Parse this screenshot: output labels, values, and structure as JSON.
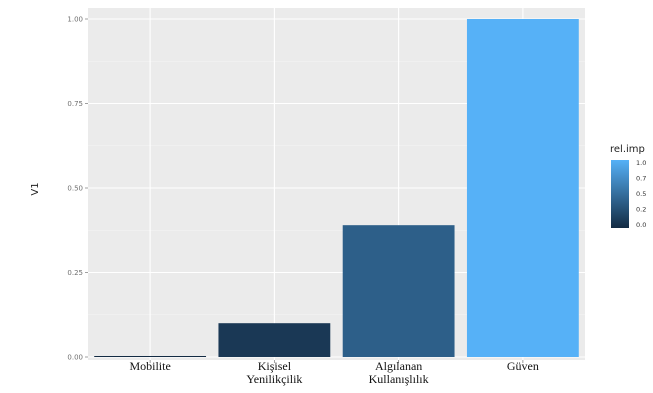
{
  "chart_data": {
    "type": "bar",
    "categories": [
      "Mobilite",
      "Kişisel Yenilikçilik",
      "Algılanan Kullanışlılık",
      "Güven"
    ],
    "category_lines": [
      [
        "Mobilite"
      ],
      [
        "Kişisel",
        "Yenilikçilik"
      ],
      [
        "Algılanan",
        "Kullanışlılık"
      ],
      [
        "Güven"
      ]
    ],
    "values": [
      0.002,
      0.1,
      0.39,
      1.0
    ],
    "ylabel": "V1",
    "xlabel": "",
    "ylim": [
      0,
      1
    ],
    "yticks": [
      0.0,
      0.25,
      0.5,
      0.75,
      1.0
    ],
    "ytick_labels": [
      "0.00",
      "0.25",
      "0.50",
      "0.75",
      "1.00"
    ],
    "grid": true,
    "legend": {
      "title": "rel.imp",
      "placement": "right",
      "type": "continuous",
      "labels": [
        "1.0",
        "0.7",
        "0.5",
        "0.2",
        "0.0"
      ],
      "color_low": "#132b43",
      "color_high": "#56b1f7"
    },
    "panel_background": "#ebebeb"
  }
}
